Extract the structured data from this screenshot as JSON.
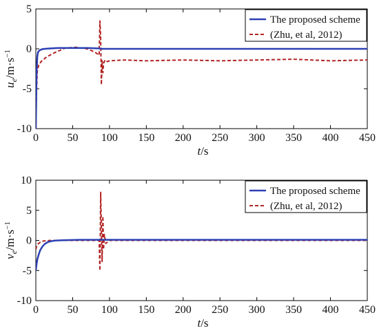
{
  "chart_data": [
    {
      "type": "line",
      "xlabel": "t/s",
      "ylabel": "u_e/m·s⁻¹",
      "xlim": [
        0,
        450
      ],
      "ylim": [
        -10,
        5
      ],
      "xticks": [
        0,
        50,
        100,
        150,
        200,
        250,
        300,
        350,
        400,
        450
      ],
      "yticks": [
        5,
        0,
        -5,
        -10
      ],
      "grid": false,
      "legend_position": "top-right",
      "series": [
        {
          "name": "The proposed scheme",
          "color": "#2b3fb3",
          "style": "solid",
          "x": [
            0,
            1,
            2,
            3,
            5,
            8,
            12,
            20,
            30,
            50,
            70,
            85,
            90,
            100,
            150,
            200,
            250,
            300,
            350,
            400,
            450
          ],
          "y": [
            -10,
            -3,
            -1,
            -0.4,
            -0.2,
            -0.05,
            0,
            0.05,
            0.1,
            0.1,
            0.1,
            0.05,
            0,
            0,
            0,
            0,
            0,
            0,
            0,
            0,
            0
          ]
        },
        {
          "name": "(Zhu, et al, 2012)",
          "color": "#b22222",
          "style": "dashed",
          "x": [
            0,
            1,
            2,
            4,
            8,
            15,
            25,
            40,
            55,
            70,
            80,
            86,
            87,
            88,
            89,
            90,
            91,
            92,
            94,
            97,
            100,
            120,
            150,
            200,
            250,
            300,
            350,
            400,
            450
          ],
          "y": [
            -10,
            -5,
            -2.8,
            -2.0,
            -1.5,
            -1.0,
            -0.5,
            0.1,
            0.2,
            0,
            -0.4,
            -0.8,
            3.5,
            1.5,
            -4.5,
            -1.5,
            -3.0,
            -1.8,
            -1.4,
            -1.6,
            -1.5,
            -1.4,
            -1.5,
            -1.4,
            -1.5,
            -1.4,
            -1.3,
            -1.5,
            -1.4
          ]
        }
      ]
    },
    {
      "type": "line",
      "xlabel": "t/s",
      "ylabel": "v_e/m·s⁻¹",
      "xlim": [
        0,
        450
      ],
      "ylim": [
        -10,
        10
      ],
      "xticks": [
        0,
        50,
        100,
        150,
        200,
        250,
        300,
        350,
        400,
        450
      ],
      "yticks": [
        10,
        5,
        0,
        -5,
        -10
      ],
      "grid": false,
      "legend_position": "top-right",
      "series": [
        {
          "name": "The proposed scheme",
          "color": "#2b3fb3",
          "style": "solid",
          "x": [
            0,
            1,
            2,
            4,
            6,
            9,
            12,
            16,
            20,
            25,
            30,
            40,
            60,
            90,
            120,
            200,
            300,
            400,
            450
          ],
          "y": [
            -5,
            -3.9,
            -3.2,
            -2.3,
            -1.6,
            -1.0,
            -0.6,
            -0.3,
            -0.15,
            -0.05,
            0,
            0.05,
            0.1,
            0.1,
            0.1,
            0.1,
            0.1,
            0.1,
            0.1
          ]
        },
        {
          "name": "(Zhu, et al, 2012)",
          "color": "#b22222",
          "style": "dashed",
          "x": [
            0,
            1,
            3,
            6,
            10,
            20,
            40,
            60,
            80,
            86,
            87,
            88,
            89,
            90,
            91,
            92,
            93,
            95,
            100,
            150,
            200,
            250,
            300,
            350,
            400,
            450
          ],
          "y": [
            -1.5,
            -1.0,
            -0.6,
            -0.3,
            -0.1,
            0,
            0,
            0,
            0,
            0,
            -5.0,
            8.0,
            2.0,
            -3.5,
            4.0,
            -1.5,
            1.0,
            -0.5,
            0,
            0,
            0,
            0,
            0,
            0,
            0,
            0
          ]
        }
      ]
    }
  ]
}
